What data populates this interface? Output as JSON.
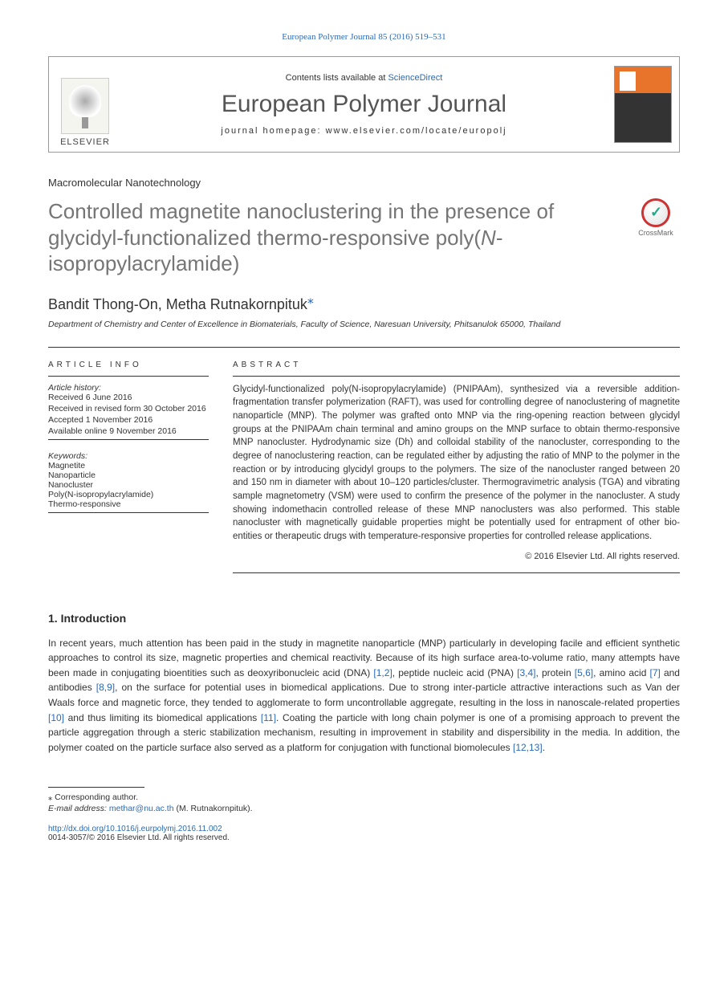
{
  "citation": "European Polymer Journal 85 (2016) 519–531",
  "header": {
    "publisher": "ELSEVIER",
    "lists_prefix": "Contents lists available at ",
    "lists_link": "ScienceDirect",
    "journal": "European Polymer Journal",
    "homepage": "journal homepage: www.elsevier.com/locate/europolj",
    "cover_alt": "EUROPEAN POLYMER JOURNAL"
  },
  "article_type": "Macromolecular Nanotechnology",
  "title_html": "Controlled magnetite nanoclustering in the presence of glycidyl-functionalized thermo-responsive poly(<span class='italic'>N</span>-isopropylacrylamide)",
  "crossmark_label": "CrossMark",
  "authors": "Bandit Thong-On, Metha Rutnakornpituk",
  "affiliation": "Department of Chemistry and Center of Excellence in Biomaterials, Faculty of Science, Naresuan University, Phitsanulok 65000, Thailand",
  "info": {
    "heading": "ARTICLE INFO",
    "history_label": "Article history:",
    "history": [
      "Received 6 June 2016",
      "Received in revised form 30 October 2016",
      "Accepted 1 November 2016",
      "Available online 9 November 2016"
    ],
    "kw_label": "Keywords:",
    "keywords": [
      "Magnetite",
      "Nanoparticle",
      "Nanocluster",
      "Poly(N-isopropylacrylamide)",
      "Thermo-responsive"
    ]
  },
  "abstract": {
    "heading": "ABSTRACT",
    "text": "Glycidyl-functionalized poly(N-isopropylacrylamide) (PNIPAAm), synthesized via a reversible addition-fragmentation transfer polymerization (RAFT), was used for controlling degree of nanoclustering of magnetite nanoparticle (MNP). The polymer was grafted onto MNP via the ring-opening reaction between glycidyl groups at the PNIPAAm chain terminal and amino groups on the MNP surface to obtain thermo-responsive MNP nanocluster. Hydrodynamic size (Dh) and colloidal stability of the nanocluster, corresponding to the degree of nanoclustering reaction, can be regulated either by adjusting the ratio of MNP to the polymer in the reaction or by introducing glycidyl groups to the polymers. The size of the nanocluster ranged between 20 and 150 nm in diameter with about 10–120 particles/cluster. Thermogravimetric analysis (TGA) and vibrating sample magnetometry (VSM) were used to confirm the presence of the polymer in the nanocluster. A study showing indomethacin controlled release of these MNP nanoclusters was also performed. This stable nanocluster with magnetically guidable properties might be potentially used for entrapment of other bio-entities or therapeutic drugs with temperature-responsive properties for controlled release applications.",
    "copyright": "© 2016 Elsevier Ltd. All rights reserved."
  },
  "section": {
    "heading": "1. Introduction",
    "p1_a": "In recent years, much attention has been paid in the study in magnetite nanoparticle (MNP) particularly in developing facile and efficient synthetic approaches to control its size, magnetic properties and chemical reactivity. Because of its high surface area-to-volume ratio, many attempts have been made in conjugating bioentities such as deoxyribonucleic acid (DNA) ",
    "r1": "[1,2]",
    "p1_b": ", peptide nucleic acid (PNA) ",
    "r2": "[3,4]",
    "p1_c": ", protein ",
    "r3": "[5,6]",
    "p1_d": ", amino acid ",
    "r4": "[7]",
    "p1_e": " and antibodies ",
    "r5": "[8,9]",
    "p1_f": ", on the surface for potential uses in biomedical applications. Due to strong inter-particle attractive interactions such as Van der Waals force and magnetic force, they tended to agglomerate to form uncontrollable aggregate, resulting in the loss in nanoscale-related properties ",
    "r6": "[10]",
    "p1_g": " and thus limiting its biomedical applications ",
    "r7": "[11]",
    "p1_h": ". Coating the particle with long chain polymer is one of a promising approach to prevent the particle aggregation through a steric stabilization mechanism, resulting in improvement in stability and dispersibility in the media. In addition, the polymer coated on the particle surface also served as a platform for conjugation with functional biomolecules ",
    "r8": "[12,13]",
    "p1_i": "."
  },
  "footer": {
    "star": "⁎",
    "corresponding": " Corresponding author.",
    "email_label": "E-mail address: ",
    "email": "methar@nu.ac.th",
    "email_who": " (M. Rutnakornpituk).",
    "doi": "http://dx.doi.org/10.1016/j.eurpolymj.2016.11.002",
    "issn_copy": "0014-3057/© 2016 Elsevier Ltd. All rights reserved."
  },
  "colors": {
    "link": "#2a6ab5",
    "title_gray": "#757575",
    "cover_orange": "#e8732b"
  }
}
